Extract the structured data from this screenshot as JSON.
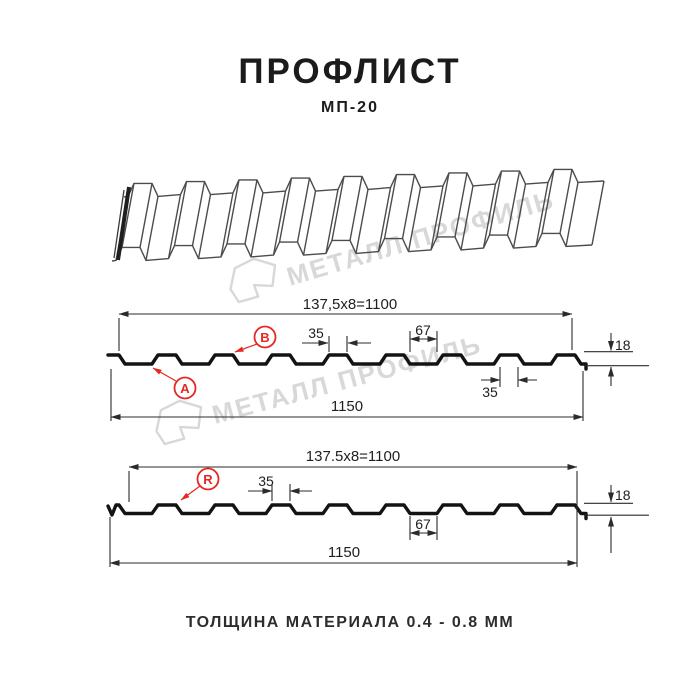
{
  "header": {
    "title": "ПРОФЛИСТ",
    "subtitle": "МП-20"
  },
  "footer": {
    "text": "ТОЛЩИНА МАТЕРИАЛА 0.4 - 0.8 ММ"
  },
  "watermark": {
    "text": "МЕТАЛЛ ПРОФИЛЬ",
    "color": "#d8d8d8"
  },
  "colors": {
    "accent_red": "#e42823",
    "line": "#131313",
    "dim": "#2b2b2b"
  },
  "profile_top": {
    "module_dim": "137,5x8=1100",
    "rib_top_width": "35",
    "valley_width": "67",
    "height": "18",
    "rib_bottom_width": "35",
    "overall_width": "1150",
    "label_a": "A",
    "label_b": "B"
  },
  "profile_bottom": {
    "module_dim": "137.5x8=1100",
    "rib_top_width": "35",
    "valley_width": "67",
    "height": "18",
    "overall_width": "1150",
    "label_r": "R"
  }
}
